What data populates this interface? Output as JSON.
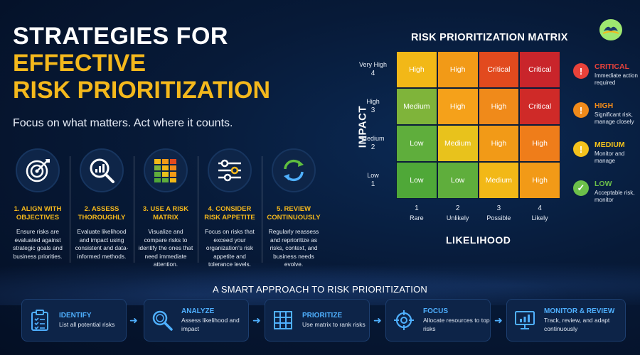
{
  "title": {
    "line1": "STRATEGIES FOR",
    "line2": "EFFECTIVE",
    "line3": "RISK PRIORITIZATION"
  },
  "subtitle": "Focus on what matters. Act where it counts.",
  "strategies": [
    {
      "icon": "target-icon",
      "title": "1. ALIGN WITH OBJECTIVES",
      "desc": "Ensure risks are evaluated against strategic goals and business priorities."
    },
    {
      "icon": "magnifier-chart-icon",
      "title": "2. ASSESS THOROUGHLY",
      "desc": "Evaluate likelihood and impact using consistent and data-informed methods."
    },
    {
      "icon": "risk-matrix-icon",
      "title": "3. USE A RISK MATRIX",
      "desc": "Visualize and compare risks to identify the ones that need immediate attention."
    },
    {
      "icon": "sliders-icon",
      "title": "4. CONSIDER RISK APPETITE",
      "desc": "Focus on risks that exceed your organization's risk appetite and tolerance levels."
    },
    {
      "icon": "refresh-icon",
      "title": "5. REVIEW CONTINUOUSLY",
      "desc": "Regularly reassess and reprioritize as risks, context, and business needs evolve."
    }
  ],
  "matrix": {
    "title": "RISK PRIORITIZATION MATRIX",
    "impact_label": "IMPACT",
    "likelihood_label": "LIKELIHOOD",
    "impact_levels": [
      {
        "name": "Very High",
        "num": "4"
      },
      {
        "name": "High",
        "num": "3"
      },
      {
        "name": "Medium",
        "num": "2"
      },
      {
        "name": "Low",
        "num": "1"
      }
    ],
    "likelihood_levels": [
      {
        "num": "1",
        "name": "Rare"
      },
      {
        "num": "2",
        "name": "Unlikely"
      },
      {
        "num": "3",
        "name": "Possible"
      },
      {
        "num": "4",
        "name": "Likely"
      }
    ],
    "rows": [
      [
        {
          "label": "High",
          "color": "#f2b817"
        },
        {
          "label": "High",
          "color": "#f29a17"
        },
        {
          "label": "Critical",
          "color": "#e24a1e"
        },
        {
          "label": "Critical",
          "color": "#c9252b"
        }
      ],
      [
        {
          "label": "Medium",
          "color": "#7fb43a"
        },
        {
          "label": "High",
          "color": "#f5a11a"
        },
        {
          "label": "High",
          "color": "#f08a1a"
        },
        {
          "label": "Critical",
          "color": "#cf2a28"
        }
      ],
      [
        {
          "label": "Low",
          "color": "#5fae3c"
        },
        {
          "label": "Medium",
          "color": "#e8c21c"
        },
        {
          "label": "High",
          "color": "#f29a17"
        },
        {
          "label": "High",
          "color": "#ef7d1a"
        }
      ],
      [
        {
          "label": "Low",
          "color": "#4fa838"
        },
        {
          "label": "Low",
          "color": "#5fae3c"
        },
        {
          "label": "Medium",
          "color": "#f2b817"
        },
        {
          "label": "High",
          "color": "#f29a17"
        }
      ]
    ]
  },
  "legend": [
    {
      "name": "CRITICAL",
      "desc": "Immediate action required",
      "color": "#e8423a",
      "symbol": "!",
      "icon": "exclamation-icon"
    },
    {
      "name": "HIGH",
      "desc": "Significant risk, manage closely",
      "color": "#f08a1a",
      "symbol": "!",
      "icon": "exclamation-icon"
    },
    {
      "name": "MEDIUM",
      "desc": "Monitor and manage",
      "color": "#f4c21c",
      "symbol": "!",
      "icon": "exclamation-icon"
    },
    {
      "name": "LOW",
      "desc": "Acceptable risk, monitor",
      "color": "#6cc04a",
      "symbol": "✓",
      "icon": "check-icon"
    }
  ],
  "approach": {
    "title": "A SMART APPROACH TO RISK PRIORITIZATION",
    "steps": [
      {
        "icon": "clipboard-icon",
        "title": "IDENTIFY",
        "desc": "List all potential risks"
      },
      {
        "icon": "magnifier-icon",
        "title": "ANALYZE",
        "desc": "Assess likelihood and impact"
      },
      {
        "icon": "grid-icon",
        "title": "PRIORITIZE",
        "desc": "Use matrix to rank risks"
      },
      {
        "icon": "crosshair-icon",
        "title": "FOCUS",
        "desc": "Allocate resources to top risks"
      },
      {
        "icon": "monitor-chart-icon",
        "title": "MONITOR & REVIEW",
        "desc": "Track, review, and adapt continuously"
      }
    ]
  }
}
